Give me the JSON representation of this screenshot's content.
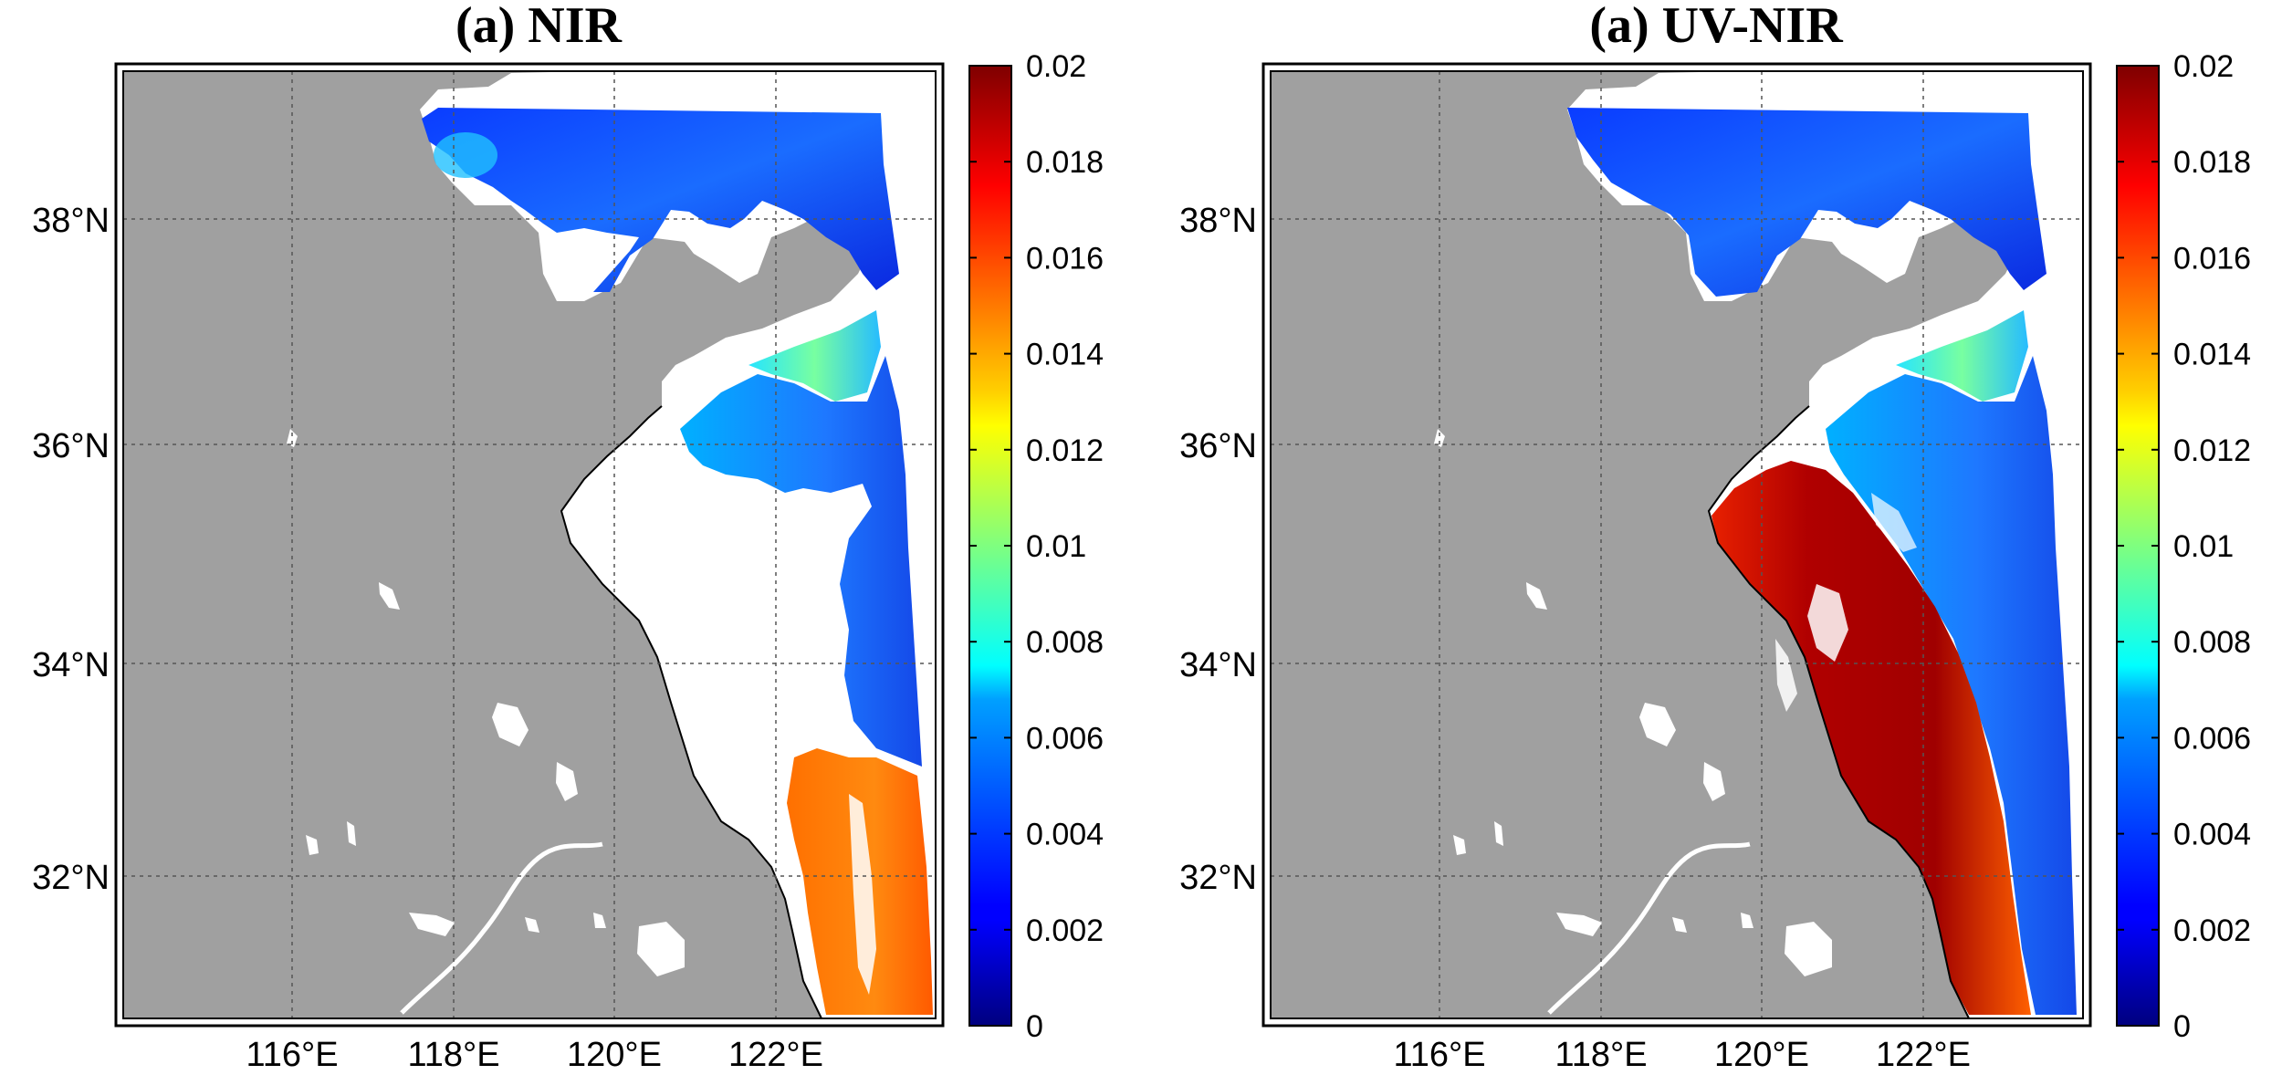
{
  "figure": {
    "panels": [
      {
        "id": "nir",
        "title": "(a) NIR",
        "lon_ticks": [
          "116°E",
          "118°E",
          "120°E",
          "122°E"
        ],
        "lat_ticks": [
          "38°N",
          "36°N",
          "34°N",
          "32°N"
        ],
        "colorbar": {
          "min": 0,
          "max": 0.02,
          "tick_labels": [
            "0.02",
            "0.018",
            "0.016",
            "0.014",
            "0.012",
            "0.01",
            "0.008",
            "0.006",
            "0.004",
            "0.002",
            "0"
          ],
          "colormap": "jet"
        }
      },
      {
        "id": "uvnir",
        "title": "(a) UV-NIR",
        "lon_ticks": [
          "116°E",
          "118°E",
          "120°E",
          "122°E"
        ],
        "lat_ticks": [
          "38°N",
          "36°N",
          "34°N",
          "32°N"
        ],
        "colorbar": {
          "min": 0,
          "max": 0.02,
          "tick_labels": [
            "0.02",
            "0.018",
            "0.016",
            "0.014",
            "0.012",
            "0.01",
            "0.008",
            "0.006",
            "0.004",
            "0.002",
            "0"
          ],
          "colormap": "jet"
        }
      }
    ],
    "colors": {
      "land": "#a0a0a0",
      "no_data": "#ffffff",
      "frame": "#000000",
      "grid": "#555555"
    }
  }
}
